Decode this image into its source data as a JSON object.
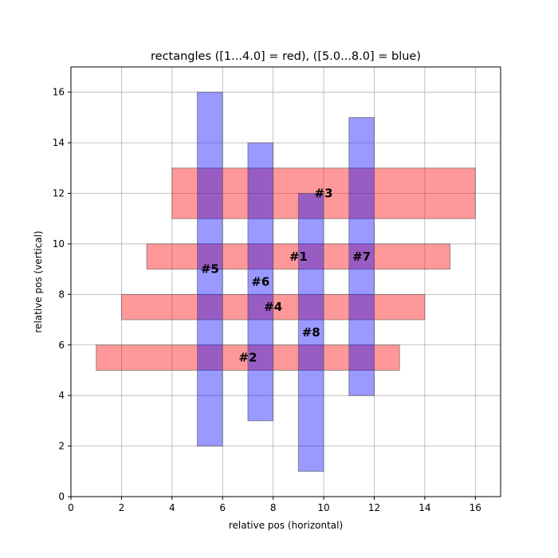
{
  "chart_data": {
    "type": "rectangles",
    "title": "rectangles ([1...4.0] = red), ([5.0...8.0] = blue)",
    "xlabel": "relative pos (horizontal)",
    "ylabel": "relative pos (vertical)",
    "xlim": [
      0,
      17
    ],
    "ylim": [
      0,
      17
    ],
    "xticks": [
      0,
      2,
      4,
      6,
      8,
      10,
      12,
      14,
      16
    ],
    "yticks": [
      0,
      2,
      4,
      6,
      8,
      10,
      12,
      14,
      16
    ],
    "grid": true,
    "colors": {
      "red": "#ff0000",
      "blue": "#0000ff",
      "red_opacity": 0.4,
      "blue_opacity": 0.4,
      "grid": "#b0b0b0",
      "edge": "#555555"
    },
    "rectangles": [
      {
        "id": 1,
        "group": "red",
        "x0": 3,
        "x1": 15,
        "y0": 9,
        "y1": 10
      },
      {
        "id": 2,
        "group": "red",
        "x0": 1,
        "x1": 13,
        "y0": 5,
        "y1": 6
      },
      {
        "id": 3,
        "group": "red",
        "x0": 4,
        "x1": 16,
        "y0": 11,
        "y1": 13
      },
      {
        "id": 4,
        "group": "red",
        "x0": 2,
        "x1": 14,
        "y0": 7,
        "y1": 8
      },
      {
        "id": 5,
        "group": "blue",
        "x0": 5,
        "x1": 6,
        "y0": 2,
        "y1": 16
      },
      {
        "id": 6,
        "group": "blue",
        "x0": 7,
        "x1": 8,
        "y0": 3,
        "y1": 14
      },
      {
        "id": 7,
        "group": "blue",
        "x0": 11,
        "x1": 12,
        "y0": 4,
        "y1": 15
      },
      {
        "id": 8,
        "group": "blue",
        "x0": 9,
        "x1": 10,
        "y0": 1,
        "y1": 12
      }
    ],
    "labels": [
      {
        "text": "#1",
        "x": 9.0,
        "y": 9.5
      },
      {
        "text": "#2",
        "x": 7.0,
        "y": 5.5
      },
      {
        "text": "#3",
        "x": 10.0,
        "y": 12.0
      },
      {
        "text": "#4",
        "x": 8.0,
        "y": 7.5
      },
      {
        "text": "#5",
        "x": 5.5,
        "y": 9.0
      },
      {
        "text": "#6",
        "x": 7.5,
        "y": 8.5
      },
      {
        "text": "#7",
        "x": 11.5,
        "y": 9.5
      },
      {
        "text": "#8",
        "x": 9.5,
        "y": 6.5
      }
    ]
  }
}
